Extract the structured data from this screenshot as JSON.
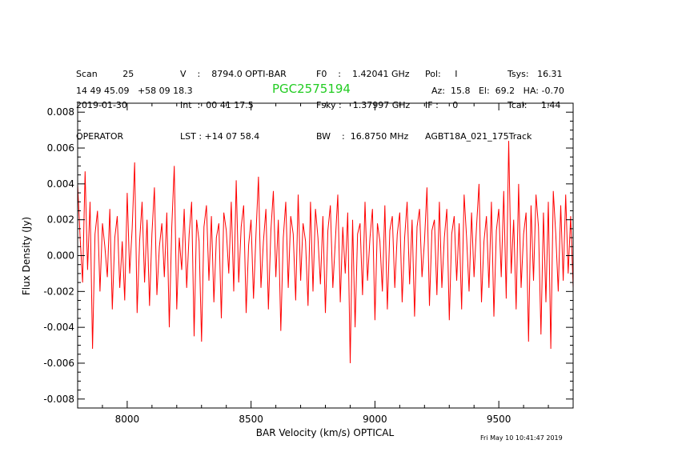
{
  "header": {
    "col1": [
      "Scan         25",
      "2019-01-30",
      "OPERATOR"
    ],
    "col2": [
      "V    :    8794.0 OPTI-BAR",
      "Int  :  00 41 17.5",
      "LST : +14 07 58.4"
    ],
    "col3": [
      "F0    :    1.42041 GHz",
      "Fsky :    1.37997 GHz",
      "BW    :  16.8750 MHz"
    ],
    "col4": [
      "Pol:     I",
      "IF :     0",
      "AGBT18A_021_175Track"
    ],
    "col5": [
      "Tsys:   16.31",
      "Tcal:     1.44",
      ""
    ],
    "coords": "14 49 45.09   +58 09 18.3",
    "pointing": "Az:  15.8   El:  69.2   HA: -0.70"
  },
  "source_name": "PGC2575194",
  "timestamp": "Fri May 10 10:41:47 2019",
  "chart_data": {
    "type": "line",
    "xlabel": "BAR Velocity (km/s) OPTICAL",
    "ylabel": "Flux Density (Jy)",
    "xlim": [
      7800,
      9800
    ],
    "ylim": [
      -0.0085,
      0.0085
    ],
    "x_ticks": [
      8000,
      8500,
      9000,
      9500
    ],
    "x_tick_labels": [
      "8000",
      "8500",
      "9000",
      "9500"
    ],
    "y_ticks": [
      -0.008,
      -0.006,
      -0.004,
      -0.002,
      0.0,
      0.002,
      0.004,
      0.006,
      0.008
    ],
    "y_tick_labels": [
      "-0.008",
      "-0.006",
      "-0.004",
      "-0.002",
      "0.000",
      "0.002",
      "0.004",
      "0.006",
      "0.008"
    ],
    "series_color": "#ff0000",
    "grid": false,
    "series": [
      {
        "x": [
          7800,
          7810,
          7820,
          7830,
          7840,
          7850,
          7860,
          7870,
          7880,
          7890,
          7900,
          7910,
          7920,
          7930,
          7940,
          7950,
          7960,
          7970,
          7980,
          7990,
          8000,
          8010,
          8020,
          8030,
          8040,
          8050,
          8060,
          8070,
          8080,
          8090,
          8100,
          8110,
          8120,
          8130,
          8140,
          8150,
          8160,
          8170,
          8180,
          8190,
          8200,
          8210,
          8220,
          8230,
          8240,
          8250,
          8260,
          8270,
          8280,
          8290,
          8300,
          8310,
          8320,
          8330,
          8340,
          8350,
          8360,
          8370,
          8380,
          8390,
          8400,
          8410,
          8420,
          8430,
          8440,
          8450,
          8460,
          8470,
          8480,
          8490,
          8500,
          8510,
          8520,
          8530,
          8540,
          8550,
          8560,
          8570,
          8580,
          8590,
          8600,
          8610,
          8620,
          8630,
          8640,
          8650,
          8660,
          8670,
          8680,
          8690,
          8700,
          8710,
          8720,
          8730,
          8740,
          8750,
          8760,
          8770,
          8780,
          8790,
          8800,
          8810,
          8820,
          8830,
          8840,
          8850,
          8860,
          8870,
          8880,
          8890,
          8900,
          8910,
          8920,
          8930,
          8940,
          8950,
          8960,
          8970,
          8980,
          8990,
          9000,
          9010,
          9020,
          9030,
          9040,
          9050,
          9060,
          9070,
          9080,
          9090,
          9100,
          9110,
          9120,
          9130,
          9140,
          9150,
          9160,
          9170,
          9180,
          9190,
          9200,
          9210,
          9220,
          9230,
          9240,
          9250,
          9260,
          9270,
          9280,
          9290,
          9300,
          9310,
          9320,
          9330,
          9340,
          9350,
          9360,
          9370,
          9380,
          9390,
          9400,
          9410,
          9420,
          9430,
          9440,
          9450,
          9460,
          9470,
          9480,
          9490,
          9500,
          9510,
          9520,
          9530,
          9540,
          9550,
          9560,
          9570,
          9580,
          9590,
          9600,
          9610,
          9620,
          9630,
          9640,
          9650,
          9660,
          9670,
          9680,
          9690,
          9700,
          9710,
          9720,
          9730,
          9740,
          9750,
          9760,
          9770,
          9780,
          9790,
          9800
        ],
        "y": [
          0.004,
          0.001,
          -0.0015,
          0.0047,
          -0.0008,
          0.003,
          -0.0052,
          0.0012,
          0.0025,
          -0.002,
          0.0018,
          0.0005,
          -0.0012,
          0.0026,
          -0.003,
          0.001,
          0.0022,
          -0.0018,
          0.0008,
          -0.0025,
          0.0035,
          -0.001,
          0.0015,
          0.0052,
          -0.0032,
          0.0008,
          0.003,
          -0.0015,
          0.002,
          -0.0028,
          0.0012,
          0.0038,
          -0.0022,
          0.0005,
          0.0018,
          -0.0012,
          0.0024,
          -0.004,
          0.0016,
          0.005,
          -0.003,
          0.001,
          -0.0008,
          0.0026,
          -0.0018,
          0.0012,
          0.003,
          -0.0045,
          0.002,
          0.0008,
          -0.0048,
          0.0016,
          0.0028,
          -0.0014,
          0.0022,
          -0.0026,
          0.001,
          0.0018,
          -0.0035,
          0.0024,
          0.0014,
          -0.001,
          0.003,
          -0.002,
          0.0042,
          -0.0015,
          0.0016,
          0.0028,
          -0.0032,
          0.0006,
          0.002,
          -0.0024,
          0.0012,
          0.0044,
          -0.0018,
          0.0008,
          0.0026,
          -0.003,
          0.0014,
          0.0036,
          -0.0012,
          0.002,
          -0.0042,
          0.001,
          0.003,
          -0.0018,
          0.0022,
          0.0012,
          -0.0025,
          0.0034,
          -0.0014,
          0.0018,
          0.0008,
          -0.0028,
          0.003,
          -0.002,
          0.0026,
          0.001,
          -0.0016,
          0.0022,
          -0.0032,
          0.0014,
          0.0028,
          -0.0018,
          0.0008,
          0.0034,
          -0.0026,
          0.0016,
          -0.001,
          0.0024,
          -0.006,
          0.002,
          -0.004,
          0.0012,
          0.0018,
          -0.0022,
          0.003,
          -0.0014,
          0.001,
          0.0026,
          -0.0036,
          0.0018,
          0.0008,
          -0.002,
          0.0028,
          -0.003,
          0.0014,
          0.0022,
          -0.0018,
          0.0012,
          0.0024,
          -0.0026,
          0.001,
          0.003,
          -0.0016,
          0.002,
          -0.0034,
          0.0016,
          0.0026,
          -0.0012,
          0.0008,
          0.0038,
          -0.0028,
          0.0014,
          0.002,
          -0.0022,
          0.003,
          -0.0018,
          0.001,
          0.0026,
          -0.0036,
          0.0012,
          0.0022,
          -0.0014,
          0.0018,
          -0.003,
          0.0034,
          0.001,
          -0.002,
          0.0024,
          -0.0012,
          0.0016,
          0.004,
          -0.0026,
          0.0008,
          0.0022,
          -0.0018,
          0.003,
          -0.0034,
          0.0014,
          0.0026,
          -0.0012,
          0.0036,
          -0.0024,
          0.0064,
          -0.001,
          0.002,
          -0.003,
          0.004,
          -0.0018,
          0.0012,
          0.0024,
          -0.0048,
          0.0028,
          -0.0014,
          0.0034,
          0.0016,
          -0.0044,
          0.0024,
          -0.0026,
          0.003,
          -0.0052,
          0.0036,
          0.0012,
          -0.002,
          0.0028,
          -0.0014,
          0.0034,
          -0.001,
          0.0022,
          -0.0018
        ]
      }
    ]
  }
}
